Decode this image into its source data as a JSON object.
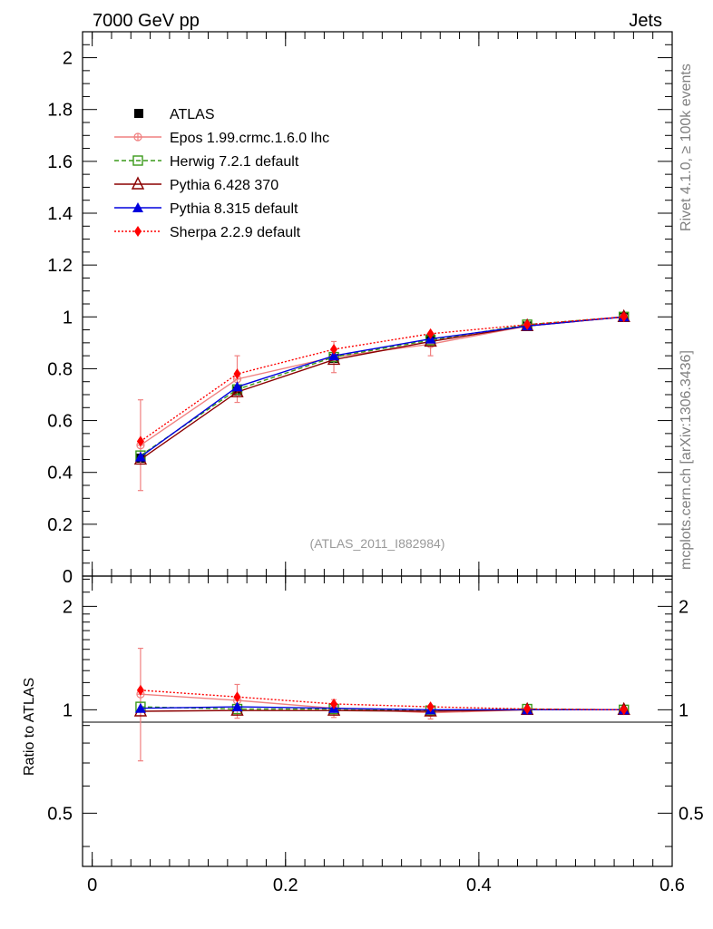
{
  "header": {
    "left_title": "7000 GeV pp",
    "right_title": "Jets"
  },
  "side_labels": {
    "rivet": "Rivet 4.1.0, ≥ 100k events",
    "mcplots": "mcplots.cern.ch [arXiv:1306.3436]"
  },
  "analysis_label": "(ATLAS_2011_I882984)",
  "chart_data": [
    {
      "type": "line",
      "panel": "main",
      "xlim": [
        -0.01,
        0.6
      ],
      "ylim": [
        0,
        2.1
      ],
      "x_ticks": [
        0,
        0.2,
        0.4,
        0.6
      ],
      "y_ticks": [
        0,
        0.2,
        0.4,
        0.6,
        0.8,
        1,
        1.2,
        1.4,
        1.6,
        1.8,
        2
      ],
      "y_tick_labels": [
        "0",
        "0.2",
        "0.4",
        "0.6",
        "0.8",
        "1",
        "1.2",
        "1.4",
        "1.6",
        "1.8",
        "2"
      ],
      "x": [
        0.05,
        0.15,
        0.25,
        0.35,
        0.45,
        0.55
      ],
      "legend_position": "top-left",
      "series": [
        {
          "name": "ATLAS",
          "color": "#000000",
          "marker": "square-filled",
          "line": "none",
          "values": [
            0.455,
            0.715,
            0.84,
            0.915,
            0.965,
            1.0
          ],
          "errors": [
            0.01,
            0.01,
            0.01,
            0.01,
            0.005,
            0.0
          ]
        },
        {
          "name": "Epos 1.99.crmc.1.6.0 lhc",
          "color": "#f08080",
          "marker": "cross-circle",
          "line": "solid",
          "values": [
            0.505,
            0.76,
            0.845,
            0.895,
            0.965,
            1.0
          ],
          "errors": [
            0.175,
            0.09,
            0.06,
            0.045,
            0.015,
            0.0
          ]
        },
        {
          "name": "Herwig 7.2.1 default",
          "color": "#3a9a1a",
          "marker": "square-open",
          "line": "dashed",
          "values": [
            0.465,
            0.72,
            0.845,
            0.91,
            0.97,
            1.0
          ],
          "errors": [
            0,
            0,
            0,
            0,
            0,
            0
          ]
        },
        {
          "name": "Pythia 6.428 370",
          "color": "#8b0000",
          "marker": "triangle-open",
          "line": "solid",
          "values": [
            0.45,
            0.71,
            0.835,
            0.905,
            0.965,
            1.0
          ],
          "errors": [
            0,
            0,
            0,
            0,
            0,
            0
          ]
        },
        {
          "name": "Pythia 8.315 default",
          "color": "#0000dd",
          "marker": "triangle-filled",
          "line": "solid",
          "values": [
            0.46,
            0.73,
            0.85,
            0.915,
            0.965,
            1.0
          ],
          "errors": [
            0,
            0,
            0,
            0,
            0,
            0
          ]
        },
        {
          "name": "Sherpa 2.2.9 default",
          "color": "#ff0000",
          "marker": "diamond-filled",
          "line": "dotted",
          "values": [
            0.52,
            0.78,
            0.875,
            0.935,
            0.97,
            1.0
          ],
          "errors": [
            0,
            0,
            0,
            0,
            0,
            0
          ]
        }
      ]
    },
    {
      "type": "line",
      "panel": "ratio",
      "ylabel": "Ratio to ATLAS",
      "xlim": [
        -0.01,
        0.6
      ],
      "ylim": [
        0.35,
        2.45
      ],
      "y_scale": "log",
      "x_ticks": [
        0,
        0.2,
        0.4,
        0.6
      ],
      "x_tick_labels": [
        "0",
        "0.2",
        "0.4",
        "0.6"
      ],
      "y_ticks": [
        0.5,
        1,
        2
      ],
      "y_tick_labels": [
        "0.5",
        "1",
        "2"
      ],
      "x": [
        0.05,
        0.15,
        0.25,
        0.35,
        0.45,
        0.55
      ],
      "series": [
        {
          "name": "Epos 1.99.crmc.1.6.0 lhc",
          "color": "#f08080",
          "marker": "cross-circle",
          "line": "solid",
          "values": [
            1.11,
            1.065,
            1.01,
            0.98,
            1.0,
            1.0
          ],
          "errors": [
            0.4,
            0.12,
            0.06,
            0.04,
            0.015,
            0.0
          ]
        },
        {
          "name": "Herwig 7.2.1 default",
          "color": "#3a9a1a",
          "marker": "square-open",
          "line": "dashed",
          "values": [
            1.02,
            1.005,
            1.005,
            0.995,
            1.005,
            1.0
          ],
          "errors": [
            0,
            0,
            0,
            0,
            0,
            0
          ]
        },
        {
          "name": "Pythia 6.428 370",
          "color": "#8b0000",
          "marker": "triangle-open",
          "line": "solid",
          "values": [
            0.99,
            0.995,
            0.995,
            0.99,
            1.0,
            1.0
          ],
          "errors": [
            0,
            0,
            0,
            0,
            0,
            0
          ]
        },
        {
          "name": "Pythia 8.315 default",
          "color": "#0000dd",
          "marker": "triangle-filled",
          "line": "solid",
          "values": [
            1.01,
            1.02,
            1.01,
            1.0,
            1.0,
            1.0
          ],
          "errors": [
            0,
            0,
            0,
            0,
            0,
            0
          ]
        },
        {
          "name": "Sherpa 2.2.9 default",
          "color": "#ff0000",
          "marker": "diamond-filled",
          "line": "dotted",
          "values": [
            1.14,
            1.09,
            1.04,
            1.02,
            1.005,
            1.0
          ],
          "errors": [
            0,
            0,
            0,
            0,
            0,
            0
          ]
        }
      ]
    }
  ]
}
